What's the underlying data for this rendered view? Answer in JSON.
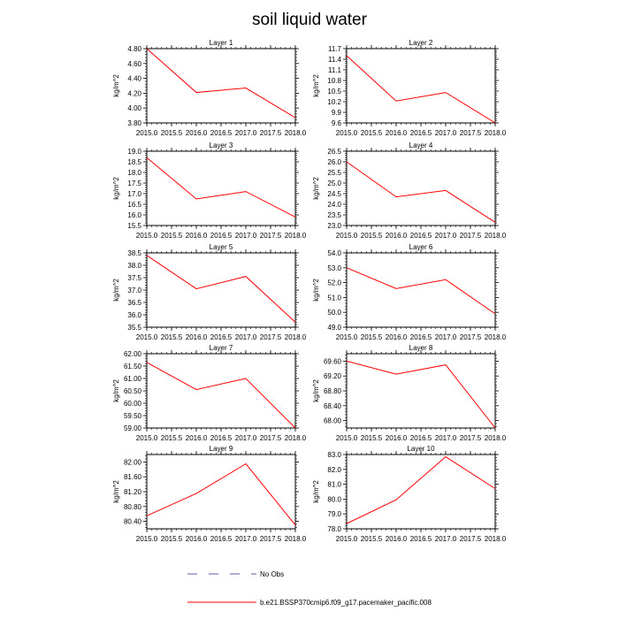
{
  "title": "soil liquid water",
  "colors": {
    "obs": "#5a5aa8",
    "model": "#ff0000",
    "axis": "#000000"
  },
  "legend": {
    "obs_label": "No Obs",
    "model_label": "b.e21.BSSP370cmip6.f09_g17.pacemaker_pacific.008"
  },
  "chart_data": [
    {
      "type": "line",
      "title": "Layer 1",
      "ylabel": "kg/m^2",
      "xlim": [
        2015.0,
        2018.0
      ],
      "xticks": [
        "2015.0",
        "2015.5",
        "2016.0",
        "2016.5",
        "2017.0",
        "2017.5",
        "2018.0"
      ],
      "ylim": [
        3.8,
        4.8
      ],
      "yticks": [
        "3.80",
        "4.00",
        "4.20",
        "4.40",
        "4.60",
        "4.80"
      ],
      "series": [
        {
          "name": "b.e21.BSSP370cmip6.f09_g17.pacemaker_pacific.008",
          "x": [
            2015,
            2016,
            2017,
            2018
          ],
          "values": [
            4.8,
            4.21,
            4.27,
            3.87
          ]
        }
      ]
    },
    {
      "type": "line",
      "title": "Layer 2",
      "ylabel": "kg/m^2",
      "xlim": [
        2015.0,
        2018.0
      ],
      "xticks": [
        "2015.0",
        "2015.5",
        "2016.0",
        "2016.5",
        "2017.0",
        "2017.5",
        "2018.0"
      ],
      "ylim": [
        9.6,
        11.7
      ],
      "yticks": [
        "9.6",
        "9.9",
        "10.2",
        "10.5",
        "10.8",
        "11.1",
        "11.4",
        "11.7"
      ],
      "series": [
        {
          "name": "b.e21.BSSP370cmip6.f09_g17.pacemaker_pacific.008",
          "x": [
            2015,
            2016,
            2017,
            2018
          ],
          "values": [
            11.5,
            10.22,
            10.46,
            9.6
          ]
        }
      ]
    },
    {
      "type": "line",
      "title": "Layer 3",
      "ylabel": "kg/m^2",
      "xlim": [
        2015.0,
        2018.0
      ],
      "xticks": [
        "2015.0",
        "2015.5",
        "2016.0",
        "2016.5",
        "2017.0",
        "2017.5",
        "2018.0"
      ],
      "ylim": [
        15.5,
        19.0
      ],
      "yticks": [
        "15.5",
        "16.0",
        "16.5",
        "17.0",
        "17.5",
        "18.0",
        "18.5",
        "19.0"
      ],
      "series": [
        {
          "name": "b.e21.BSSP370cmip6.f09_g17.pacemaker_pacific.008",
          "x": [
            2015,
            2016,
            2017,
            2018
          ],
          "values": [
            18.7,
            16.75,
            17.1,
            15.9
          ]
        }
      ]
    },
    {
      "type": "line",
      "title": "Layer 4",
      "ylabel": "kg/m^2",
      "xlim": [
        2015.0,
        2018.0
      ],
      "xticks": [
        "2015.0",
        "2015.5",
        "2016.0",
        "2016.5",
        "2017.0",
        "2017.5",
        "2018.0"
      ],
      "ylim": [
        23.0,
        26.5
      ],
      "yticks": [
        "23.0",
        "23.5",
        "24.0",
        "24.5",
        "25.0",
        "25.5",
        "26.0",
        "26.5"
      ],
      "series": [
        {
          "name": "b.e21.BSSP370cmip6.f09_g17.pacemaker_pacific.008",
          "x": [
            2015,
            2016,
            2017,
            2018
          ],
          "values": [
            26.0,
            24.35,
            24.65,
            23.15
          ]
        }
      ]
    },
    {
      "type": "line",
      "title": "Layer 5",
      "ylabel": "kg/m^2",
      "xlim": [
        2015.0,
        2018.0
      ],
      "xticks": [
        "2015.0",
        "2015.5",
        "2016.0",
        "2016.5",
        "2017.0",
        "2017.5",
        "2018.0"
      ],
      "ylim": [
        35.5,
        38.5
      ],
      "yticks": [
        "35.5",
        "36.0",
        "36.5",
        "37.0",
        "37.5",
        "38.0",
        "38.5"
      ],
      "series": [
        {
          "name": "b.e21.BSSP370cmip6.f09_g17.pacemaker_pacific.008",
          "x": [
            2015,
            2016,
            2017,
            2018
          ],
          "values": [
            38.4,
            37.05,
            37.55,
            35.7
          ]
        }
      ]
    },
    {
      "type": "line",
      "title": "Layer 6",
      "ylabel": "kg/m^2",
      "xlim": [
        2015.0,
        2018.0
      ],
      "xticks": [
        "2015.0",
        "2015.5",
        "2016.0",
        "2016.5",
        "2017.0",
        "2017.5",
        "2018.0"
      ],
      "ylim": [
        49.0,
        54.0
      ],
      "yticks": [
        "49.0",
        "50.0",
        "51.0",
        "52.0",
        "53.0",
        "54.0"
      ],
      "series": [
        {
          "name": "b.e21.BSSP370cmip6.f09_g17.pacemaker_pacific.008",
          "x": [
            2015,
            2016,
            2017,
            2018
          ],
          "values": [
            53.0,
            51.6,
            52.2,
            49.9
          ]
        }
      ]
    },
    {
      "type": "line",
      "title": "Layer 7",
      "ylabel": "kg/m^2",
      "xlim": [
        2015.0,
        2018.0
      ],
      "xticks": [
        "2015.0",
        "2015.5",
        "2016.0",
        "2016.5",
        "2017.0",
        "2017.5",
        "2018.0"
      ],
      "ylim": [
        59.0,
        62.0
      ],
      "yticks": [
        "59.00",
        "59.50",
        "60.00",
        "60.50",
        "61.00",
        "61.50",
        "62.00"
      ],
      "series": [
        {
          "name": "b.e21.BSSP370cmip6.f09_g17.pacemaker_pacific.008",
          "x": [
            2015,
            2016,
            2017,
            2018
          ],
          "values": [
            61.65,
            60.55,
            61.0,
            59.0
          ]
        }
      ]
    },
    {
      "type": "line",
      "title": "Layer 8",
      "ylabel": "kg/m^2",
      "xlim": [
        2015.0,
        2018.0
      ],
      "xticks": [
        "2015.0",
        "2015.5",
        "2016.0",
        "2016.5",
        "2017.0",
        "2017.5",
        "2018.0"
      ],
      "ylim": [
        67.8,
        69.8
      ],
      "yticks": [
        "68.00",
        "68.40",
        "68.80",
        "69.20",
        "69.60"
      ],
      "series": [
        {
          "name": "b.e21.BSSP370cmip6.f09_g17.pacemaker_pacific.008",
          "x": [
            2015,
            2016,
            2017,
            2018
          ],
          "values": [
            69.6,
            69.25,
            69.5,
            67.8
          ]
        }
      ]
    },
    {
      "type": "line",
      "title": "Layer 9",
      "ylabel": "kg/m^2",
      "xlim": [
        2015.0,
        2018.0
      ],
      "xticks": [
        "2015.0",
        "2015.5",
        "2016.0",
        "2016.5",
        "2017.0",
        "2017.5",
        "2018.0"
      ],
      "ylim": [
        80.2,
        82.2
      ],
      "yticks": [
        "80.40",
        "80.80",
        "81.20",
        "81.60",
        "82.00"
      ],
      "series": [
        {
          "name": "b.e21.BSSP370cmip6.f09_g17.pacemaker_pacific.008",
          "x": [
            2015,
            2016,
            2017,
            2018
          ],
          "values": [
            80.55,
            81.15,
            81.95,
            80.3
          ]
        }
      ]
    },
    {
      "type": "line",
      "title": "Layer 10",
      "ylabel": "kg/m^2",
      "xlim": [
        2015.0,
        2018.0
      ],
      "xticks": [
        "2015.0",
        "2015.5",
        "2016.0",
        "2016.5",
        "2017.0",
        "2017.5",
        "2018.0"
      ],
      "ylim": [
        78.0,
        83.0
      ],
      "yticks": [
        "78.0",
        "79.0",
        "80.0",
        "81.0",
        "82.0",
        "83.0"
      ],
      "series": [
        {
          "name": "b.e21.BSSP370cmip6.f09_g17.pacemaker_pacific.008",
          "x": [
            2015,
            2016,
            2017,
            2018
          ],
          "values": [
            78.35,
            79.95,
            82.85,
            80.7
          ]
        }
      ]
    }
  ]
}
